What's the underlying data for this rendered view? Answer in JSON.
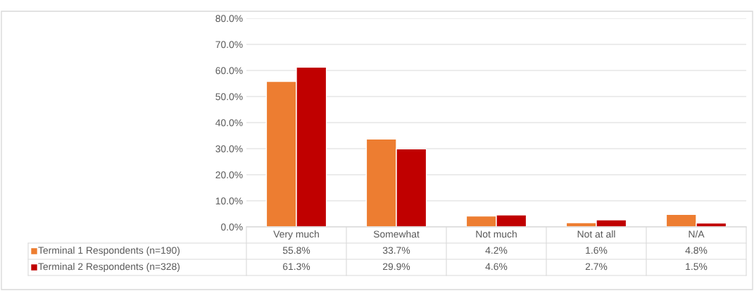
{
  "chart_data": {
    "type": "bar",
    "categories": [
      "Very much",
      "Somewhat",
      "Not much",
      "Not at all",
      "N/A"
    ],
    "series": [
      {
        "name": "Terminal 1 Respondents (n=190)",
        "color": "#ed7d31",
        "values": [
          55.8,
          33.7,
          4.2,
          1.6,
          4.8
        ],
        "value_labels": [
          "55.8%",
          "33.7%",
          "4.2%",
          "1.6%",
          "4.8%"
        ]
      },
      {
        "name": "Terminal 2 Respondents (n=328)",
        "color": "#c00000",
        "values": [
          61.3,
          29.9,
          4.6,
          2.7,
          1.5
        ],
        "value_labels": [
          "61.3%",
          "29.9%",
          "4.6%",
          "2.7%",
          "1.5%"
        ]
      }
    ],
    "ylim": [
      0,
      80
    ],
    "yticks": [
      {
        "value": 0,
        "label": "0.0%"
      },
      {
        "value": 10,
        "label": "10.0%"
      },
      {
        "value": 20,
        "label": "20.0%"
      },
      {
        "value": 30,
        "label": "30.0%"
      },
      {
        "value": 40,
        "label": "40.0%"
      },
      {
        "value": 50,
        "label": "50.0%"
      },
      {
        "value": 60,
        "label": "60.0%"
      },
      {
        "value": 70,
        "label": "70.0%"
      },
      {
        "value": 80,
        "label": "80.0%"
      }
    ],
    "grid": "y",
    "legend": "bottom"
  }
}
